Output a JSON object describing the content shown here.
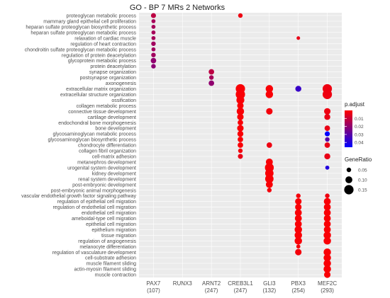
{
  "chart_data": {
    "type": "scatter",
    "title": "GO - BP 7 MRs 2 Networks",
    "terms": [
      "proteoglycan metabolic process",
      "mammary gland epithelial cell proliferation",
      "heparan sulfate proteoglycan biosynthetic process",
      "heparan sulfate proteoglycan metabolic process",
      "relaxation of cardiac muscle",
      "regulation of heart contraction",
      "chondroitin sulfate proteoglycan metabolic process",
      "regulation of protein deacetylation",
      "glycoprotein metabolic process",
      "protein deacetylation",
      "synapse organization",
      "postsynapse organization",
      "axonogenesis",
      "extracellular matrix organization",
      "extracellular structure organization",
      "ossification",
      "collagen metabolic process",
      "connective tissue development",
      "cartilage development",
      "endochondral bone morphogenesis",
      "bone development",
      "glycosaminoglycan metabolic process",
      "glycosaminoglycan biosynthetic process",
      "chondrocyte differentiation",
      "collagen fibril organization",
      "cell-matrix adhesion",
      "metanephros development",
      "urogenital system development",
      "kidney development",
      "renal system development",
      "post-embryonic development",
      "post-embryonic animal morphogenesis",
      "vascular endothelial growth factor signaling pathway",
      "regulation of epithelial cell migration",
      "regulation of endothelial cell migration",
      "endothelial cell migration",
      "ameboidal-type cell migration",
      "epithelial cell migration",
      "epithelium migration",
      "tissue migration",
      "regulation of angiogenesis",
      "melanocyte differentiation",
      "regulation of vasculature development",
      "cell-substrate adhesion",
      "muscle filament sliding",
      "actin-myosin filament sliding",
      "muscle contraction"
    ],
    "genes": [
      {
        "name": "PAX7",
        "count": "(107)"
      },
      {
        "name": "RUNX3",
        "count": ""
      },
      {
        "name": "ARNT2",
        "count": "(247)"
      },
      {
        "name": "CREB3L1",
        "count": "(247)"
      },
      {
        "name": "GLI3",
        "count": "(132)"
      },
      {
        "name": "PBX3",
        "count": "(254)"
      },
      {
        "name": "MEF2C",
        "count": "(293)"
      }
    ],
    "points": [
      {
        "gene": 0,
        "term": 0,
        "ratio": 0.06,
        "padj": 0.012
      },
      {
        "gene": 0,
        "term": 1,
        "ratio": 0.04,
        "padj": 0.016
      },
      {
        "gene": 0,
        "term": 2,
        "ratio": 0.04,
        "padj": 0.016
      },
      {
        "gene": 0,
        "term": 3,
        "ratio": 0.04,
        "padj": 0.016
      },
      {
        "gene": 0,
        "term": 4,
        "ratio": 0.04,
        "padj": 0.016
      },
      {
        "gene": 0,
        "term": 5,
        "ratio": 0.05,
        "padj": 0.017
      },
      {
        "gene": 0,
        "term": 6,
        "ratio": 0.04,
        "padj": 0.017
      },
      {
        "gene": 0,
        "term": 7,
        "ratio": 0.05,
        "padj": 0.017
      },
      {
        "gene": 0,
        "term": 8,
        "ratio": 0.07,
        "padj": 0.02
      },
      {
        "gene": 0,
        "term": 9,
        "ratio": 0.05,
        "padj": 0.021
      },
      {
        "gene": 3,
        "term": 0,
        "ratio": 0.05,
        "padj": 0.003
      },
      {
        "gene": 2,
        "term": 10,
        "ratio": 0.07,
        "padj": 0.012
      },
      {
        "gene": 2,
        "term": 11,
        "ratio": 0.05,
        "padj": 0.016
      },
      {
        "gene": 2,
        "term": 12,
        "ratio": 0.07,
        "padj": 0.02
      },
      {
        "gene": 3,
        "term": 13,
        "ratio": 0.15,
        "padj": 0.001
      },
      {
        "gene": 3,
        "term": 14,
        "ratio": 0.15,
        "padj": 0.001
      },
      {
        "gene": 3,
        "term": 15,
        "ratio": 0.12,
        "padj": 0.001
      },
      {
        "gene": 3,
        "term": 16,
        "ratio": 0.09,
        "padj": 0.001
      },
      {
        "gene": 3,
        "term": 17,
        "ratio": 0.11,
        "padj": 0.001
      },
      {
        "gene": 3,
        "term": 18,
        "ratio": 0.09,
        "padj": 0.001
      },
      {
        "gene": 3,
        "term": 19,
        "ratio": 0.07,
        "padj": 0.001
      },
      {
        "gene": 3,
        "term": 20,
        "ratio": 0.09,
        "padj": 0.001
      },
      {
        "gene": 3,
        "term": 21,
        "ratio": 0.08,
        "padj": 0.001
      },
      {
        "gene": 3,
        "term": 22,
        "ratio": 0.07,
        "padj": 0.001
      },
      {
        "gene": 3,
        "term": 23,
        "ratio": 0.07,
        "padj": 0.001
      },
      {
        "gene": 3,
        "term": 24,
        "ratio": 0.05,
        "padj": 0.002
      },
      {
        "gene": 3,
        "term": 25,
        "ratio": 0.06,
        "padj": 0.004
      },
      {
        "gene": 4,
        "term": 13,
        "ratio": 0.11,
        "padj": 0.001
      },
      {
        "gene": 4,
        "term": 14,
        "ratio": 0.11,
        "padj": 0.001
      },
      {
        "gene": 4,
        "term": 17,
        "ratio": 0.09,
        "padj": 0.002
      },
      {
        "gene": 4,
        "term": 23,
        "ratio": 0.07,
        "padj": 0.003
      },
      {
        "gene": 4,
        "term": 26,
        "ratio": 0.1,
        "padj": 0.001
      },
      {
        "gene": 4,
        "term": 27,
        "ratio": 0.14,
        "padj": 0.001
      },
      {
        "gene": 4,
        "term": 28,
        "ratio": 0.13,
        "padj": 0.001
      },
      {
        "gene": 4,
        "term": 29,
        "ratio": 0.13,
        "padj": 0.001
      },
      {
        "gene": 4,
        "term": 30,
        "ratio": 0.1,
        "padj": 0.001
      },
      {
        "gene": 4,
        "term": 31,
        "ratio": 0.05,
        "padj": 0.002
      },
      {
        "gene": 5,
        "term": 4,
        "ratio": 0.03,
        "padj": 0.004
      },
      {
        "gene": 5,
        "term": 13,
        "ratio": 0.08,
        "padj": 0.036
      },
      {
        "gene": 5,
        "term": 32,
        "ratio": 0.05,
        "padj": 0.002
      },
      {
        "gene": 5,
        "term": 33,
        "ratio": 0.09,
        "padj": 0.001
      },
      {
        "gene": 5,
        "term": 34,
        "ratio": 0.09,
        "padj": 0.001
      },
      {
        "gene": 5,
        "term": 35,
        "ratio": 0.1,
        "padj": 0.001
      },
      {
        "gene": 5,
        "term": 36,
        "ratio": 0.1,
        "padj": 0.001
      },
      {
        "gene": 5,
        "term": 37,
        "ratio": 0.1,
        "padj": 0.001
      },
      {
        "gene": 5,
        "term": 38,
        "ratio": 0.11,
        "padj": 0.001
      },
      {
        "gene": 5,
        "term": 39,
        "ratio": 0.11,
        "padj": 0.001
      },
      {
        "gene": 5,
        "term": 40,
        "ratio": 0.11,
        "padj": 0.001
      },
      {
        "gene": 5,
        "term": 41,
        "ratio": 0.04,
        "padj": 0.002
      },
      {
        "gene": 5,
        "term": 42,
        "ratio": 0.09,
        "padj": 0.002
      },
      {
        "gene": 6,
        "term": 13,
        "ratio": 0.15,
        "padj": 0.003
      },
      {
        "gene": 6,
        "term": 14,
        "ratio": 0.15,
        "padj": 0.003
      },
      {
        "gene": 6,
        "term": 17,
        "ratio": 0.09,
        "padj": 0.003
      },
      {
        "gene": 6,
        "term": 18,
        "ratio": 0.08,
        "padj": 0.004
      },
      {
        "gene": 6,
        "term": 20,
        "ratio": 0.07,
        "padj": 0.004
      },
      {
        "gene": 6,
        "term": 21,
        "ratio": 0.06,
        "padj": 0.046
      },
      {
        "gene": 6,
        "term": 22,
        "ratio": 0.05,
        "padj": 0.03
      },
      {
        "gene": 6,
        "term": 23,
        "ratio": 0.07,
        "padj": 0.004
      },
      {
        "gene": 6,
        "term": 25,
        "ratio": 0.08,
        "padj": 0.004
      },
      {
        "gene": 6,
        "term": 27,
        "ratio": 0.04,
        "padj": 0.04
      },
      {
        "gene": 6,
        "term": 32,
        "ratio": 0.05,
        "padj": 0.003
      },
      {
        "gene": 6,
        "term": 33,
        "ratio": 0.1,
        "padj": 0.001
      },
      {
        "gene": 6,
        "term": 34,
        "ratio": 0.1,
        "padj": 0.001
      },
      {
        "gene": 6,
        "term": 35,
        "ratio": 0.1,
        "padj": 0.001
      },
      {
        "gene": 6,
        "term": 36,
        "ratio": 0.1,
        "padj": 0.001
      },
      {
        "gene": 6,
        "term": 37,
        "ratio": 0.1,
        "padj": 0.001
      },
      {
        "gene": 6,
        "term": 38,
        "ratio": 0.1,
        "padj": 0.001
      },
      {
        "gene": 6,
        "term": 39,
        "ratio": 0.11,
        "padj": 0.001
      },
      {
        "gene": 6,
        "term": 40,
        "ratio": 0.11,
        "padj": 0.001
      },
      {
        "gene": 6,
        "term": 42,
        "ratio": 0.11,
        "padj": 0.001
      },
      {
        "gene": 6,
        "term": 43,
        "ratio": 0.11,
        "padj": 0.001
      },
      {
        "gene": 6,
        "term": 44,
        "ratio": 0.11,
        "padj": 0.001
      },
      {
        "gene": 6,
        "term": 45,
        "ratio": 0.11,
        "padj": 0.001
      },
      {
        "gene": 6,
        "term": 46,
        "ratio": 0.09,
        "padj": 0.001
      }
    ],
    "padj_legend": {
      "title": "p.adjust",
      "ticks": [
        0.01,
        0.02,
        0.03,
        0.04
      ],
      "range": [
        0.0,
        0.046
      ]
    },
    "size_legend": {
      "title": "GeneRatio",
      "values": [
        0.05,
        0.1,
        0.15
      ]
    },
    "colors": {
      "low": "#ff0000",
      "high": "#0000ff",
      "panel": "#ebebeb",
      "grid": "#ffffff"
    },
    "grid": true,
    "legend_position": "right"
  }
}
